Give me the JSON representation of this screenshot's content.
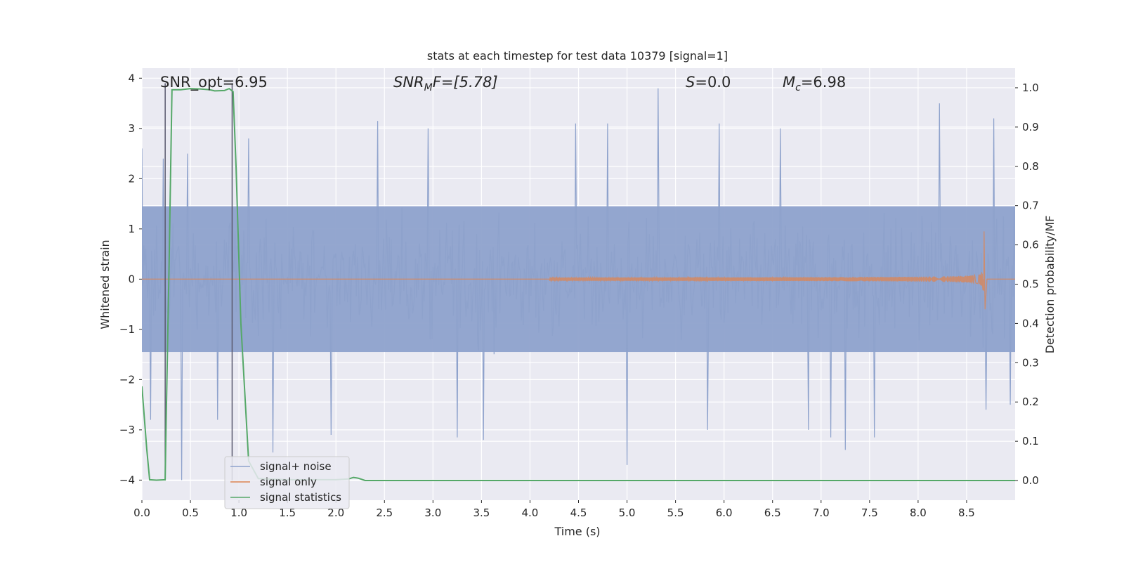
{
  "chart_data": {
    "type": "line",
    "title": "stats at each timestep for test data 10379 [signal=1]",
    "xlabel": "Time (s)",
    "ylabel_left": "Whitened strain",
    "ylabel_right": "Detection probability/MF",
    "xlim": [
      0.0,
      9.0
    ],
    "ylim_left": [
      -4.4,
      4.2
    ],
    "ylim_right": [
      -0.05,
      1.05
    ],
    "x_ticks": [
      0.0,
      0.5,
      1.0,
      1.5,
      2.0,
      2.5,
      3.0,
      3.5,
      4.0,
      4.5,
      5.0,
      5.5,
      6.0,
      6.5,
      7.0,
      7.5,
      8.0,
      8.5
    ],
    "x_tick_labels": [
      "0.0",
      "0.5",
      "1.0",
      "1.5",
      "2.0",
      "2.5",
      "3.0",
      "3.5",
      "4.0",
      "4.5",
      "5.0",
      "5.5",
      "6.0",
      "6.5",
      "7.0",
      "7.5",
      "8.0",
      "8.5"
    ],
    "y_left_ticks": [
      -4,
      -3,
      -2,
      -1,
      0,
      1,
      2,
      3,
      4
    ],
    "y_left_tick_labels": [
      "−4",
      "−3",
      "−2",
      "−1",
      "0",
      "1",
      "2",
      "3",
      "4"
    ],
    "y_right_ticks": [
      0.0,
      0.1,
      0.2,
      0.3,
      0.4,
      0.5,
      0.6,
      0.7,
      0.8,
      0.9,
      1.0
    ],
    "y_right_tick_labels": [
      "0.0",
      "0.1",
      "0.2",
      "0.3",
      "0.4",
      "0.5",
      "0.6",
      "0.7",
      "0.8",
      "0.9",
      "1.0"
    ],
    "grid": true,
    "legend_location": "lower-left",
    "annotations": [
      {
        "id": "snr_opt",
        "text": "SNR_opt=6.95"
      },
      {
        "id": "snr_mf",
        "base": "SNR",
        "sub": "M",
        "rest": "F=[5.78]"
      },
      {
        "id": "s",
        "base": "S",
        "rest": "=0.0"
      },
      {
        "id": "mc",
        "base": "M",
        "sub": "c",
        "rest": "=6.98"
      }
    ],
    "series": [
      {
        "name": "signal+ noise",
        "axis": "left",
        "color": "#8ea2cc",
        "envelope_abs": 1.45,
        "sample_step": 0.01,
        "spike_peaks": [
          {
            "x": 0.0,
            "y": 2.6
          },
          {
            "x": 0.09,
            "y": -2.8
          },
          {
            "x": 0.22,
            "y": 2.4
          },
          {
            "x": 0.41,
            "y": -4.0
          },
          {
            "x": 0.47,
            "y": 2.5
          },
          {
            "x": 0.78,
            "y": -2.8
          },
          {
            "x": 1.1,
            "y": 2.8
          },
          {
            "x": 1.35,
            "y": -3.45
          },
          {
            "x": 1.95,
            "y": -3.1
          },
          {
            "x": 2.43,
            "y": 3.15
          },
          {
            "x": 2.95,
            "y": 3.0
          },
          {
            "x": 3.25,
            "y": -3.15
          },
          {
            "x": 3.52,
            "y": -3.2
          },
          {
            "x": 4.47,
            "y": 3.1
          },
          {
            "x": 4.8,
            "y": 3.1
          },
          {
            "x": 5.0,
            "y": -3.7
          },
          {
            "x": 5.32,
            "y": 3.8
          },
          {
            "x": 5.83,
            "y": -3.0
          },
          {
            "x": 5.95,
            "y": 3.1
          },
          {
            "x": 6.58,
            "y": 3.0
          },
          {
            "x": 6.87,
            "y": -3.0
          },
          {
            "x": 7.1,
            "y": -3.15
          },
          {
            "x": 7.25,
            "y": -3.4
          },
          {
            "x": 7.55,
            "y": -3.15
          },
          {
            "x": 8.22,
            "y": 3.5
          },
          {
            "x": 8.7,
            "y": -2.6
          },
          {
            "x": 8.78,
            "y": 3.2
          },
          {
            "x": 8.95,
            "y": -2.5
          }
        ]
      },
      {
        "name": "signal only",
        "axis": "left",
        "color": "#dd8452",
        "chirp_start": 4.2,
        "merger_time": 8.68,
        "peak_amplitude": 0.95,
        "trough_amplitude": -0.6
      },
      {
        "name": "signal statistics",
        "axis": "right",
        "color": "#55a868",
        "x": [
          0.0,
          0.05,
          0.08,
          0.15,
          0.24,
          0.25,
          0.28,
          0.31,
          0.4,
          0.5,
          0.6,
          0.7,
          0.75,
          0.85,
          0.9,
          0.94,
          0.97,
          1.02,
          1.1,
          1.2,
          1.5,
          2.0,
          2.13,
          2.18,
          2.23,
          2.3,
          3.0,
          5.0,
          7.0,
          9.0
        ],
        "y": [
          0.24,
          0.08,
          0.002,
          0.001,
          0.002,
          0.15,
          0.55,
          0.995,
          0.995,
          0.998,
          0.997,
          0.995,
          0.992,
          0.993,
          0.998,
          0.99,
          0.8,
          0.4,
          0.05,
          0.005,
          0.002,
          0.002,
          0.004,
          0.008,
          0.006,
          0.0,
          0.0,
          0.0,
          0.0,
          0.0
        ]
      }
    ],
    "vlines": [
      0.24,
      0.93
    ],
    "vline_color": "#5a5a6e"
  }
}
